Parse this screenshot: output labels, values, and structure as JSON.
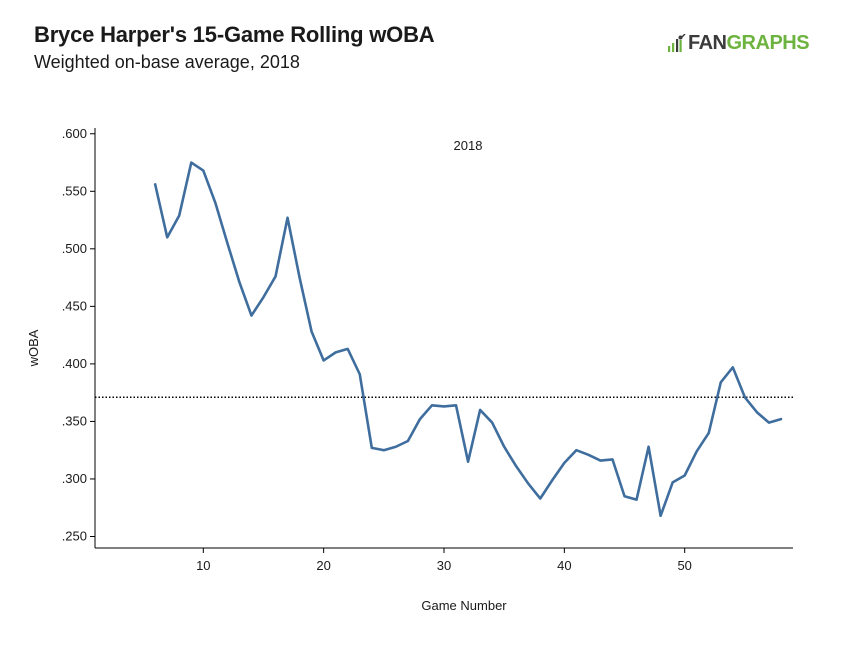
{
  "title": "Bryce Harper's 15-Game Rolling wOBA",
  "subtitle": "Weighted on-base average, 2018",
  "logo": {
    "prefix": "FAN",
    "suffix": "GRAPHS"
  },
  "colors": {
    "line": "#3f6e9e",
    "reference": "#000000",
    "logo_green": "#6db33f"
  },
  "chart_data": {
    "type": "line",
    "title": "Bryce Harper's 15-Game Rolling wOBA",
    "subtitle": "Weighted on-base average, 2018",
    "xlabel": "Game Number",
    "ylabel": "wOBA",
    "annotation": "2018",
    "xlim": [
      1,
      59
    ],
    "ylim": [
      0.24,
      0.605
    ],
    "xticks": [
      10,
      20,
      30,
      40,
      50
    ],
    "yticks": [
      0.25,
      0.3,
      0.35,
      0.4,
      0.45,
      0.5,
      0.55,
      0.6
    ],
    "ytick_labels": [
      ".250",
      ".300",
      ".350",
      ".400",
      ".450",
      ".500",
      ".550",
      ".600"
    ],
    "reference_line": {
      "y": 0.371,
      "style": "dotted"
    },
    "grid": false,
    "series": [
      {
        "x": [
          6,
          7,
          8,
          9,
          10,
          11,
          12,
          13,
          14,
          15,
          16,
          17,
          18,
          19,
          20,
          21,
          22,
          23,
          24,
          25,
          26,
          27,
          28,
          29,
          30,
          31,
          32,
          33,
          34,
          35,
          36,
          37,
          38,
          39,
          40,
          41,
          42,
          43,
          44,
          45,
          46,
          47,
          48,
          49,
          50,
          51,
          52,
          53,
          54,
          55,
          56,
          57,
          58
        ],
        "y": [
          0.556,
          0.51,
          0.529,
          0.575,
          0.568,
          0.54,
          0.505,
          0.471,
          0.442,
          0.458,
          0.476,
          0.527,
          0.475,
          0.428,
          0.403,
          0.41,
          0.413,
          0.391,
          0.327,
          0.325,
          0.328,
          0.333,
          0.352,
          0.364,
          0.363,
          0.364,
          0.315,
          0.36,
          0.349,
          0.328,
          0.311,
          0.296,
          0.283,
          0.299,
          0.314,
          0.325,
          0.321,
          0.316,
          0.317,
          0.285,
          0.282,
          0.328,
          0.268,
          0.297,
          0.303,
          0.324,
          0.34,
          0.384,
          0.397,
          0.371,
          0.358,
          0.349,
          0.352
        ]
      }
    ]
  }
}
